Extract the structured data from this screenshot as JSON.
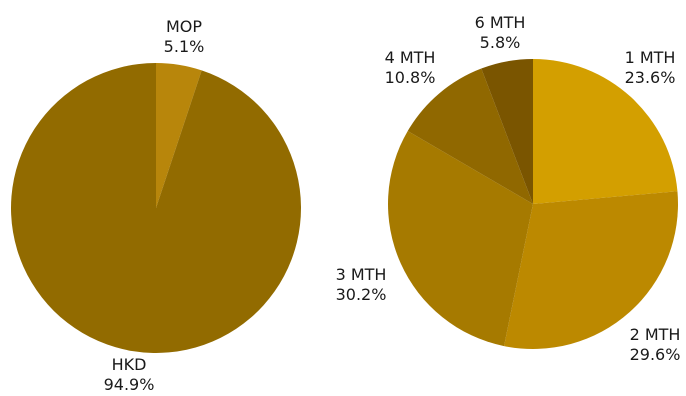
{
  "chart_data": [
    {
      "type": "pie",
      "title": "",
      "slices": [
        {
          "label": "MOP",
          "value": 5.1,
          "display": "5.1%",
          "color": "#b8860b"
        },
        {
          "label": "HKD",
          "value": 94.9,
          "display": "94.9%",
          "color": "#926b00"
        }
      ]
    },
    {
      "type": "pie",
      "title": "",
      "slices": [
        {
          "label": "1 MTH",
          "value": 23.6,
          "display": "23.6%",
          "color": "#d39f00"
        },
        {
          "label": "2 MTH",
          "value": 29.6,
          "display": "29.6%",
          "color": "#bc8900"
        },
        {
          "label": "3 MTH",
          "value": 30.2,
          "display": "30.2%",
          "color": "#a67a00"
        },
        {
          "label": "4 MTH",
          "value": 10.8,
          "display": "10.8%",
          "color": "#906800"
        },
        {
          "label": "6 MTH",
          "value": 5.8,
          "display": "5.8%",
          "color": "#7a5500"
        }
      ]
    }
  ]
}
